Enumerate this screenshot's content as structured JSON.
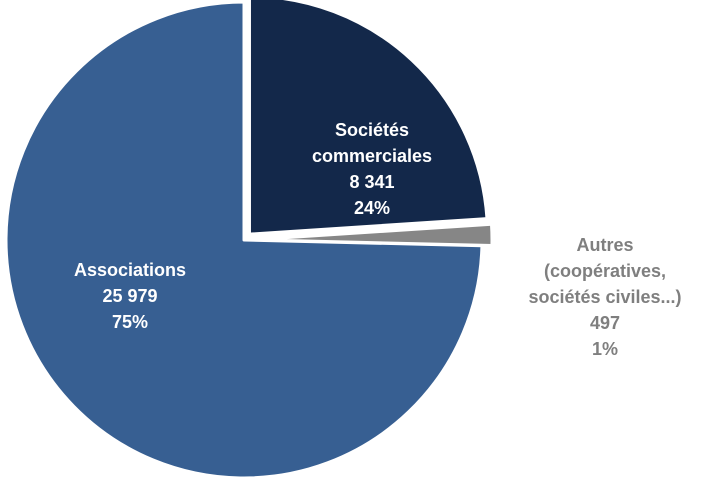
{
  "chart_data": {
    "type": "pie",
    "title": "",
    "slices": [
      {
        "label_lines": [
          "Sociétés",
          "commerciales"
        ],
        "value": 8341,
        "value_text": "8 341",
        "percent_text": "24%",
        "color": "#13284a",
        "exploded": true,
        "label_color": "#ffffff",
        "label_placement": "inside"
      },
      {
        "label_lines": [
          "Autres",
          "(coopératives,",
          "sociétés civiles...)"
        ],
        "value": 497,
        "value_text": "497",
        "percent_text": "1%",
        "color": "#868686",
        "exploded": true,
        "label_color": "#7f7f7f",
        "label_placement": "outside-right"
      },
      {
        "label_lines": [
          "Associations"
        ],
        "value": 25979,
        "value_text": "25 979",
        "percent_text": "75%",
        "color": "#375f92",
        "exploded": false,
        "label_color": "#ffffff",
        "label_placement": "inside"
      }
    ],
    "start_angle_deg": 0,
    "direction": "clockwise",
    "legend": "none"
  }
}
